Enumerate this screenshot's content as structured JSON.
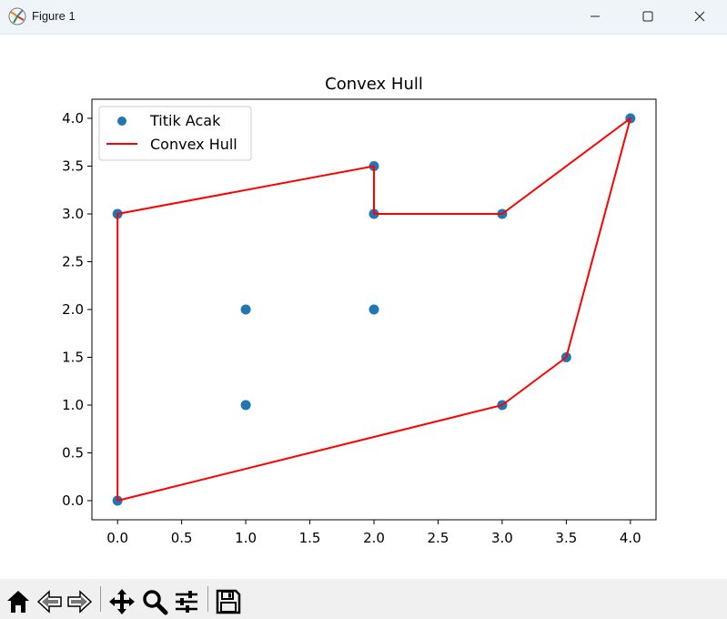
{
  "window": {
    "title": "Figure 1",
    "icons": {
      "app": "matplotlib-figure-icon",
      "minimize": "minimize-icon",
      "maximize": "maximize-icon",
      "close": "close-icon"
    }
  },
  "toolbar": {
    "tools": [
      {
        "name": "home",
        "icon": "home-icon"
      },
      {
        "name": "back",
        "icon": "arrow-left-icon"
      },
      {
        "name": "forward",
        "icon": "arrow-right-icon"
      },
      {
        "name": "pan",
        "icon": "move-icon"
      },
      {
        "name": "zoom",
        "icon": "zoom-icon"
      },
      {
        "name": "configure-subplots",
        "icon": "sliders-icon"
      },
      {
        "name": "save",
        "icon": "floppy-disk-icon"
      }
    ]
  },
  "chart_data": {
    "type": "scatter",
    "title": "Convex Hull",
    "xlabel": "",
    "ylabel": "",
    "xlim": [
      -0.2,
      4.2
    ],
    "ylim": [
      -0.2,
      4.2
    ],
    "xticks": [
      0.0,
      0.5,
      1.0,
      1.5,
      2.0,
      2.5,
      3.0,
      3.5,
      4.0
    ],
    "xtick_labels": [
      "0.0",
      "0.5",
      "1.0",
      "1.5",
      "2.0",
      "2.5",
      "3.0",
      "3.5",
      "4.0"
    ],
    "yticks": [
      0.0,
      0.5,
      1.0,
      1.5,
      2.0,
      2.5,
      3.0,
      3.5,
      4.0
    ],
    "ytick_labels": [
      "0.0",
      "0.5",
      "1.0",
      "1.5",
      "2.0",
      "2.5",
      "3.0",
      "3.5",
      "4.0"
    ],
    "grid": false,
    "legend": "upper left",
    "series": [
      {
        "name": "Titik Acak",
        "kind": "scatter",
        "color": "#1f77b4",
        "points": [
          [
            0,
            0
          ],
          [
            0,
            3
          ],
          [
            1,
            2
          ],
          [
            1,
            1
          ],
          [
            2,
            2
          ],
          [
            2,
            3
          ],
          [
            2,
            3.5
          ],
          [
            3,
            3
          ],
          [
            3,
            1
          ],
          [
            3.5,
            1.5
          ],
          [
            4,
            4
          ]
        ]
      },
      {
        "name": "Convex Hull",
        "kind": "line",
        "color": "#ff0000",
        "points": [
          [
            0,
            0
          ],
          [
            3,
            1
          ],
          [
            3.5,
            1.5
          ],
          [
            4,
            4
          ],
          [
            3,
            3
          ],
          [
            2,
            3
          ],
          [
            2,
            3.5
          ],
          [
            0,
            3
          ],
          [
            0,
            0
          ]
        ]
      }
    ]
  }
}
